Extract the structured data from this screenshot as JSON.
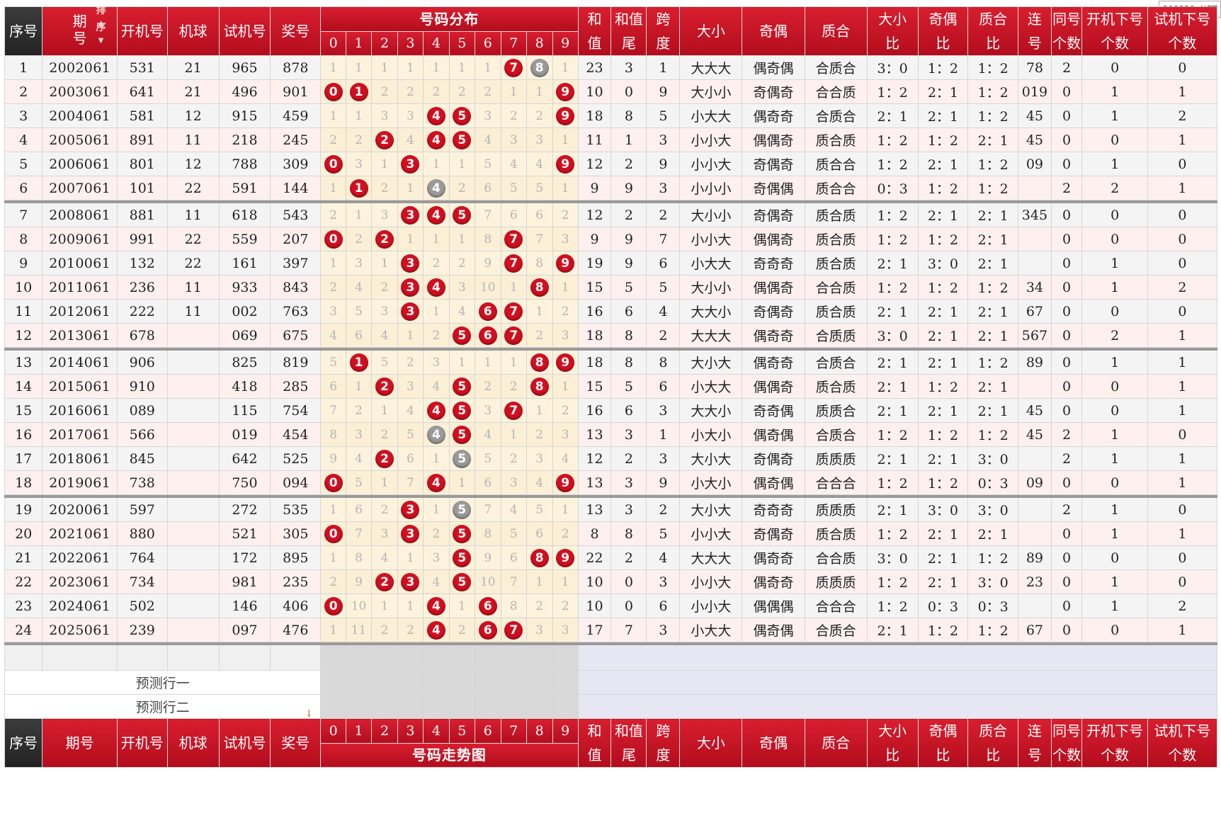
{
  "watermark": "800820. NET",
  "header": {
    "seq": "序号",
    "period_top": "期",
    "period_bottom": "号",
    "sort_label": "排序",
    "kaiji": "开机号",
    "jiqiu": "机球",
    "shiji": "试机号",
    "jianghao": "奖号",
    "dist_title": "号码分布",
    "digits": [
      "0",
      "1",
      "2",
      "3",
      "4",
      "5",
      "6",
      "7",
      "8",
      "9"
    ],
    "hezhi": [
      "和",
      "值"
    ],
    "hezhiwei": [
      "和值",
      "尾"
    ],
    "kuadu": [
      "跨",
      "度"
    ],
    "daxiao": "大小",
    "jiou": "奇偶",
    "zhihe": "质合",
    "daxiaobi": [
      "大小",
      "比"
    ],
    "jioubi": [
      "奇偶",
      "比"
    ],
    "zhihebi": [
      "质合",
      "比"
    ],
    "lianhao": [
      "连",
      "号"
    ],
    "tonghao": [
      "同号",
      "个数"
    ],
    "kjxh": [
      "开机下号",
      "个数"
    ],
    "sjxh": [
      "试机下号",
      "个数"
    ]
  },
  "footer": {
    "seq": "序号",
    "period": "期号",
    "kaiji": "开机号",
    "jiqiu": "机球",
    "shiji": "试机号",
    "jianghao": "奖号",
    "trend_title": "号码走势图"
  },
  "predict": [
    "预测行一",
    "预测行二"
  ],
  "rows": [
    {
      "n": "1",
      "p": "2002061",
      "k": "531",
      "q": "21",
      "s": "965",
      "j": "878",
      "d": [
        "1",
        "1",
        "1",
        "1",
        "1",
        "1",
        "1",
        "7",
        "8",
        "1"
      ],
      "hz": "23",
      "hw": "3",
      "kd": "1",
      "dx": "大大大",
      "jo": "偶奇偶",
      "zh": "合质合",
      "dxb": "3：0",
      "job": "1：2",
      "zhb": "1：2",
      "lh": "78",
      "th": "2",
      "kx": "0",
      "sx": "0"
    },
    {
      "n": "2",
      "p": "2003061",
      "k": "641",
      "q": "21",
      "s": "496",
      "j": "901",
      "d": [
        "0",
        "1",
        "2",
        "2",
        "2",
        "2",
        "2",
        "1",
        "1",
        "9"
      ],
      "hz": "10",
      "hw": "0",
      "kd": "9",
      "dx": "大小小",
      "jo": "奇偶奇",
      "zh": "合合质",
      "dxb": "1：2",
      "job": "2：1",
      "zhb": "1：2",
      "lh": "019",
      "th": "0",
      "kx": "1",
      "sx": "1"
    },
    {
      "n": "3",
      "p": "2004061",
      "k": "581",
      "q": "12",
      "s": "915",
      "j": "459",
      "d": [
        "1",
        "1",
        "3",
        "3",
        "4",
        "5",
        "3",
        "2",
        "2",
        "9"
      ],
      "hz": "18",
      "hw": "8",
      "kd": "5",
      "dx": "小大大",
      "jo": "偶奇奇",
      "zh": "合质合",
      "dxb": "2：1",
      "job": "2：1",
      "zhb": "1：2",
      "lh": "45",
      "th": "0",
      "kx": "1",
      "sx": "2"
    },
    {
      "n": "4",
      "p": "2005061",
      "k": "891",
      "q": "11",
      "s": "218",
      "j": "245",
      "d": [
        "2",
        "2",
        "2",
        "4",
        "4",
        "5",
        "4",
        "3",
        "3",
        "1"
      ],
      "hz": "11",
      "hw": "1",
      "kd": "3",
      "dx": "小小大",
      "jo": "偶偶奇",
      "zh": "质合质",
      "dxb": "1：2",
      "job": "1：2",
      "zhb": "2：1",
      "lh": "45",
      "th": "0",
      "kx": "0",
      "sx": "1"
    },
    {
      "n": "5",
      "p": "2006061",
      "k": "801",
      "q": "12",
      "s": "788",
      "j": "309",
      "d": [
        "0",
        "3",
        "1",
        "3",
        "1",
        "1",
        "5",
        "4",
        "4",
        "9"
      ],
      "hz": "12",
      "hw": "2",
      "kd": "9",
      "dx": "小小大",
      "jo": "奇偶奇",
      "zh": "质合合",
      "dxb": "1：2",
      "job": "2：1",
      "zhb": "1：2",
      "lh": "09",
      "th": "0",
      "kx": "1",
      "sx": "0"
    },
    {
      "n": "6",
      "p": "2007061",
      "k": "101",
      "q": "22",
      "s": "591",
      "j": "144",
      "d": [
        "1",
        "1",
        "2",
        "1",
        "4",
        "2",
        "6",
        "5",
        "5",
        "1"
      ],
      "hz": "9",
      "hw": "9",
      "kd": "3",
      "dx": "小小小",
      "jo": "奇偶偶",
      "zh": "质合合",
      "dxb": "0：3",
      "job": "1：2",
      "zhb": "1：2",
      "lh": "",
      "th": "2",
      "kx": "2",
      "sx": "1"
    },
    {
      "n": "7",
      "p": "2008061",
      "k": "881",
      "q": "11",
      "s": "618",
      "j": "543",
      "d": [
        "2",
        "1",
        "3",
        "3",
        "4",
        "5",
        "7",
        "6",
        "6",
        "2"
      ],
      "hz": "12",
      "hw": "2",
      "kd": "2",
      "dx": "大小小",
      "jo": "奇偶奇",
      "zh": "质合质",
      "dxb": "1：2",
      "job": "2：1",
      "zhb": "2：1",
      "lh": "345",
      "th": "0",
      "kx": "0",
      "sx": "0"
    },
    {
      "n": "8",
      "p": "2009061",
      "k": "991",
      "q": "22",
      "s": "559",
      "j": "207",
      "d": [
        "0",
        "2",
        "2",
        "1",
        "1",
        "1",
        "8",
        "7",
        "7",
        "3"
      ],
      "hz": "9",
      "hw": "9",
      "kd": "7",
      "dx": "小小大",
      "jo": "偶偶奇",
      "zh": "质合质",
      "dxb": "1：2",
      "job": "1：2",
      "zhb": "2：1",
      "lh": "",
      "th": "0",
      "kx": "0",
      "sx": "0"
    },
    {
      "n": "9",
      "p": "2010061",
      "k": "132",
      "q": "22",
      "s": "161",
      "j": "397",
      "d": [
        "1",
        "3",
        "1",
        "3",
        "2",
        "2",
        "9",
        "7",
        "8",
        "9"
      ],
      "hz": "19",
      "hw": "9",
      "kd": "6",
      "dx": "小大大",
      "jo": "奇奇奇",
      "zh": "质合质",
      "dxb": "2：1",
      "job": "3：0",
      "zhb": "2：1",
      "lh": "",
      "th": "0",
      "kx": "1",
      "sx": "0"
    },
    {
      "n": "10",
      "p": "2011061",
      "k": "236",
      "q": "11",
      "s": "933",
      "j": "843",
      "d": [
        "2",
        "4",
        "2",
        "3",
        "4",
        "3",
        "10",
        "1",
        "8",
        "1"
      ],
      "hz": "15",
      "hw": "5",
      "kd": "5",
      "dx": "大小小",
      "jo": "偶偶奇",
      "zh": "合合质",
      "dxb": "1：2",
      "job": "1：2",
      "zhb": "1：2",
      "lh": "34",
      "th": "0",
      "kx": "1",
      "sx": "2"
    },
    {
      "n": "11",
      "p": "2012061",
      "k": "222",
      "q": "11",
      "s": "002",
      "j": "763",
      "d": [
        "3",
        "5",
        "3",
        "3",
        "1",
        "4",
        "6",
        "7",
        "1",
        "2"
      ],
      "hz": "16",
      "hw": "6",
      "kd": "4",
      "dx": "大大小",
      "jo": "奇偶奇",
      "zh": "质合质",
      "dxb": "2：1",
      "job": "2：1",
      "zhb": "2：1",
      "lh": "67",
      "th": "0",
      "kx": "0",
      "sx": "0"
    },
    {
      "n": "12",
      "p": "2013061",
      "k": "678",
      "q": "",
      "s": "069",
      "j": "675",
      "d": [
        "4",
        "6",
        "4",
        "1",
        "2",
        "5",
        "6",
        "7",
        "2",
        "3"
      ],
      "hz": "18",
      "hw": "8",
      "kd": "2",
      "dx": "大大大",
      "jo": "偶奇奇",
      "zh": "合质质",
      "dxb": "3：0",
      "job": "2：1",
      "zhb": "2：1",
      "lh": "567",
      "th": "0",
      "kx": "2",
      "sx": "1"
    },
    {
      "n": "13",
      "p": "2014061",
      "k": "906",
      "q": "",
      "s": "825",
      "j": "819",
      "d": [
        "5",
        "1",
        "5",
        "2",
        "3",
        "1",
        "1",
        "1",
        "8",
        "9"
      ],
      "hz": "18",
      "hw": "8",
      "kd": "8",
      "dx": "大小大",
      "jo": "偶奇奇",
      "zh": "合质合",
      "dxb": "2：1",
      "job": "2：1",
      "zhb": "1：2",
      "lh": "89",
      "th": "0",
      "kx": "1",
      "sx": "1"
    },
    {
      "n": "14",
      "p": "2015061",
      "k": "910",
      "q": "",
      "s": "418",
      "j": "285",
      "d": [
        "6",
        "1",
        "2",
        "3",
        "4",
        "5",
        "2",
        "2",
        "8",
        "1"
      ],
      "hz": "15",
      "hw": "5",
      "kd": "6",
      "dx": "小大大",
      "jo": "偶偶奇",
      "zh": "质合质",
      "dxb": "2：1",
      "job": "1：2",
      "zhb": "2：1",
      "lh": "",
      "th": "0",
      "kx": "0",
      "sx": "1"
    },
    {
      "n": "15",
      "p": "2016061",
      "k": "089",
      "q": "",
      "s": "115",
      "j": "754",
      "d": [
        "7",
        "2",
        "1",
        "4",
        "4",
        "5",
        "3",
        "7",
        "1",
        "2"
      ],
      "hz": "16",
      "hw": "6",
      "kd": "3",
      "dx": "大大小",
      "jo": "奇奇偶",
      "zh": "质质合",
      "dxb": "2：1",
      "job": "2：1",
      "zhb": "2：1",
      "lh": "45",
      "th": "0",
      "kx": "0",
      "sx": "1"
    },
    {
      "n": "16",
      "p": "2017061",
      "k": "566",
      "q": "",
      "s": "019",
      "j": "454",
      "d": [
        "8",
        "3",
        "2",
        "5",
        "4",
        "5",
        "4",
        "1",
        "2",
        "3"
      ],
      "hz": "13",
      "hw": "3",
      "kd": "1",
      "dx": "小大小",
      "jo": "偶奇偶",
      "zh": "合质合",
      "dxb": "1：2",
      "job": "1：2",
      "zhb": "1：2",
      "lh": "45",
      "th": "2",
      "kx": "1",
      "sx": "0"
    },
    {
      "n": "17",
      "p": "2018061",
      "k": "845",
      "q": "",
      "s": "642",
      "j": "525",
      "d": [
        "9",
        "4",
        "2",
        "6",
        "1",
        "5",
        "5",
        "2",
        "3",
        "4"
      ],
      "hz": "12",
      "hw": "2",
      "kd": "3",
      "dx": "大小大",
      "jo": "奇偶奇",
      "zh": "质质质",
      "dxb": "2：1",
      "job": "2：1",
      "zhb": "3：0",
      "lh": "",
      "th": "2",
      "kx": "1",
      "sx": "1"
    },
    {
      "n": "18",
      "p": "2019061",
      "k": "738",
      "q": "",
      "s": "750",
      "j": "094",
      "d": [
        "0",
        "5",
        "1",
        "7",
        "4",
        "1",
        "6",
        "3",
        "4",
        "9"
      ],
      "hz": "13",
      "hw": "3",
      "kd": "9",
      "dx": "小大小",
      "jo": "偶奇偶",
      "zh": "合合合",
      "dxb": "1：2",
      "job": "1：2",
      "zhb": "0：3",
      "lh": "09",
      "th": "0",
      "kx": "0",
      "sx": "1"
    },
    {
      "n": "19",
      "p": "2020061",
      "k": "597",
      "q": "",
      "s": "272",
      "j": "535",
      "d": [
        "1",
        "6",
        "2",
        "3",
        "1",
        "5",
        "7",
        "4",
        "5",
        "1"
      ],
      "hz": "13",
      "hw": "3",
      "kd": "2",
      "dx": "大小大",
      "jo": "奇奇奇",
      "zh": "质质质",
      "dxb": "2：1",
      "job": "3：0",
      "zhb": "3：0",
      "lh": "",
      "th": "2",
      "kx": "1",
      "sx": "0"
    },
    {
      "n": "20",
      "p": "2021061",
      "k": "880",
      "q": "",
      "s": "521",
      "j": "305",
      "d": [
        "0",
        "7",
        "3",
        "3",
        "2",
        "5",
        "8",
        "5",
        "6",
        "2"
      ],
      "hz": "8",
      "hw": "8",
      "kd": "5",
      "dx": "小小大",
      "jo": "奇偶奇",
      "zh": "质合质",
      "dxb": "1：2",
      "job": "2：1",
      "zhb": "2：1",
      "lh": "",
      "th": "0",
      "kx": "1",
      "sx": "1"
    },
    {
      "n": "21",
      "p": "2022061",
      "k": "764",
      "q": "",
      "s": "172",
      "j": "895",
      "d": [
        "1",
        "8",
        "4",
        "1",
        "3",
        "5",
        "9",
        "6",
        "8",
        "9"
      ],
      "hz": "22",
      "hw": "2",
      "kd": "4",
      "dx": "大大大",
      "jo": "偶奇奇",
      "zh": "合合质",
      "dxb": "3：0",
      "job": "2：1",
      "zhb": "1：2",
      "lh": "89",
      "th": "0",
      "kx": "0",
      "sx": "0"
    },
    {
      "n": "22",
      "p": "2023061",
      "k": "734",
      "q": "",
      "s": "981",
      "j": "235",
      "d": [
        "2",
        "9",
        "2",
        "3",
        "4",
        "5",
        "10",
        "7",
        "1",
        "1"
      ],
      "hz": "10",
      "hw": "0",
      "kd": "3",
      "dx": "小小大",
      "jo": "偶奇奇",
      "zh": "质质质",
      "dxb": "1：2",
      "job": "2：1",
      "zhb": "3：0",
      "lh": "23",
      "th": "0",
      "kx": "1",
      "sx": "0"
    },
    {
      "n": "23",
      "p": "2024061",
      "k": "502",
      "q": "",
      "s": "146",
      "j": "406",
      "d": [
        "0",
        "10",
        "1",
        "1",
        "4",
        "1",
        "6",
        "8",
        "2",
        "2"
      ],
      "hz": "10",
      "hw": "0",
      "kd": "6",
      "dx": "小小大",
      "jo": "偶偶偶",
      "zh": "合合合",
      "dxb": "1：2",
      "job": "0：3",
      "zhb": "0：3",
      "lh": "",
      "th": "0",
      "kx": "1",
      "sx": "2"
    },
    {
      "n": "24",
      "p": "2025061",
      "k": "239",
      "q": "",
      "s": "097",
      "j": "476",
      "d": [
        "1",
        "11",
        "2",
        "2",
        "4",
        "2",
        "6",
        "7",
        "3",
        "3"
      ],
      "hz": "17",
      "hw": "7",
      "kd": "3",
      "dx": "小大大",
      "jo": "偶奇偶",
      "zh": "合质合",
      "dxb": "2：1",
      "job": "1：2",
      "zhb": "1：2",
      "lh": "67",
      "th": "0",
      "kx": "0",
      "sx": "1"
    }
  ],
  "hits": {
    "1": [
      [
        7,
        "red"
      ],
      [
        8,
        "gray"
      ]
    ],
    "2": [
      [
        0,
        "red"
      ],
      [
        1,
        "red"
      ],
      [
        9,
        "red"
      ]
    ],
    "3": [
      [
        4,
        "red"
      ],
      [
        5,
        "red"
      ],
      [
        9,
        "red"
      ]
    ],
    "4": [
      [
        2,
        "red"
      ],
      [
        4,
        "red"
      ],
      [
        5,
        "red"
      ]
    ],
    "5": [
      [
        0,
        "red"
      ],
      [
        3,
        "red"
      ],
      [
        9,
        "red"
      ]
    ],
    "6": [
      [
        1,
        "red"
      ],
      [
        4,
        "gray"
      ]
    ],
    "7": [
      [
        3,
        "red"
      ],
      [
        4,
        "red"
      ],
      [
        5,
        "red"
      ]
    ],
    "8": [
      [
        0,
        "red"
      ],
      [
        2,
        "red"
      ],
      [
        7,
        "red"
      ]
    ],
    "9": [
      [
        3,
        "red"
      ],
      [
        7,
        "red"
      ],
      [
        9,
        "red"
      ]
    ],
    "10": [
      [
        3,
        "red"
      ],
      [
        4,
        "red"
      ],
      [
        8,
        "red"
      ]
    ],
    "11": [
      [
        3,
        "red"
      ],
      [
        6,
        "red"
      ],
      [
        7,
        "red"
      ]
    ],
    "12": [
      [
        5,
        "red"
      ],
      [
        6,
        "red"
      ],
      [
        7,
        "red"
      ]
    ],
    "13": [
      [
        1,
        "red"
      ],
      [
        8,
        "red"
      ],
      [
        9,
        "red"
      ]
    ],
    "14": [
      [
        2,
        "red"
      ],
      [
        5,
        "red"
      ],
      [
        8,
        "red"
      ]
    ],
    "15": [
      [
        4,
        "red"
      ],
      [
        5,
        "red"
      ],
      [
        7,
        "red"
      ]
    ],
    "16": [
      [
        4,
        "gray"
      ],
      [
        5,
        "red"
      ]
    ],
    "17": [
      [
        2,
        "red"
      ],
      [
        5,
        "gray"
      ]
    ],
    "18": [
      [
        0,
        "red"
      ],
      [
        4,
        "red"
      ],
      [
        9,
        "red"
      ]
    ],
    "19": [
      [
        3,
        "red"
      ],
      [
        5,
        "gray"
      ]
    ],
    "20": [
      [
        0,
        "red"
      ],
      [
        3,
        "red"
      ],
      [
        5,
        "red"
      ]
    ],
    "21": [
      [
        5,
        "red"
      ],
      [
        8,
        "red"
      ],
      [
        9,
        "red"
      ]
    ],
    "22": [
      [
        2,
        "red"
      ],
      [
        3,
        "red"
      ],
      [
        5,
        "red"
      ]
    ],
    "23": [
      [
        0,
        "red"
      ],
      [
        4,
        "red"
      ],
      [
        6,
        "red"
      ]
    ],
    "24": [
      [
        4,
        "red"
      ],
      [
        6,
        "red"
      ],
      [
        7,
        "red"
      ]
    ]
  },
  "colors": {
    "header_red": "#c8102e",
    "ball_red": "#d10f1f",
    "ball_gray": "#9a9a9a",
    "dist_bg": "#fdf3dc"
  }
}
